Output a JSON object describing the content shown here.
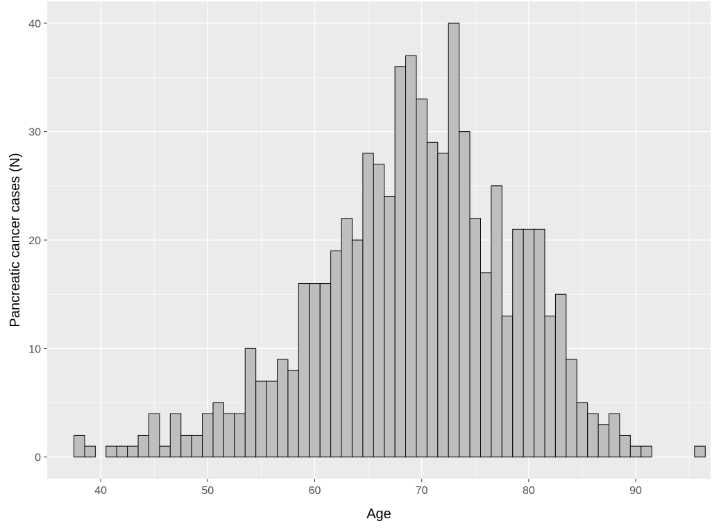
{
  "chart_data": {
    "type": "bar",
    "xlabel": "Age",
    "ylabel": "Pancreatic cancer cases (N)",
    "xlim": [
      35.0,
      97.0
    ],
    "ylim": [
      -2,
      42
    ],
    "bin_width": 1,
    "x": [
      38,
      39,
      40,
      41,
      42,
      43,
      44,
      45,
      46,
      47,
      48,
      49,
      50,
      51,
      52,
      53,
      54,
      55,
      56,
      57,
      58,
      59,
      60,
      61,
      62,
      63,
      64,
      65,
      66,
      67,
      68,
      69,
      70,
      71,
      72,
      73,
      74,
      75,
      76,
      77,
      78,
      79,
      80,
      81,
      82,
      83,
      84,
      85,
      86,
      87,
      88,
      89,
      90,
      91,
      92,
      93,
      94,
      95,
      96
    ],
    "values": [
      2,
      1,
      0,
      1,
      1,
      1,
      2,
      4,
      1,
      4,
      2,
      2,
      4,
      5,
      4,
      4,
      10,
      7,
      7,
      9,
      8,
      16,
      16,
      16,
      19,
      22,
      20,
      28,
      27,
      24,
      36,
      37,
      33,
      29,
      28,
      40,
      30,
      22,
      17,
      25,
      13,
      21,
      21,
      21,
      13,
      15,
      9,
      5,
      4,
      3,
      4,
      2,
      1,
      1,
      0,
      0,
      0,
      0,
      1
    ],
    "x_ticks": [
      40,
      50,
      60,
      70,
      80,
      90
    ],
    "y_ticks": [
      0,
      10,
      20,
      30,
      40
    ],
    "grid": true,
    "colors": {
      "panel": "#ebebeb",
      "grid_major": "#ffffff",
      "bar_fill": "#bebebe",
      "bar_stroke": "#000000"
    }
  }
}
